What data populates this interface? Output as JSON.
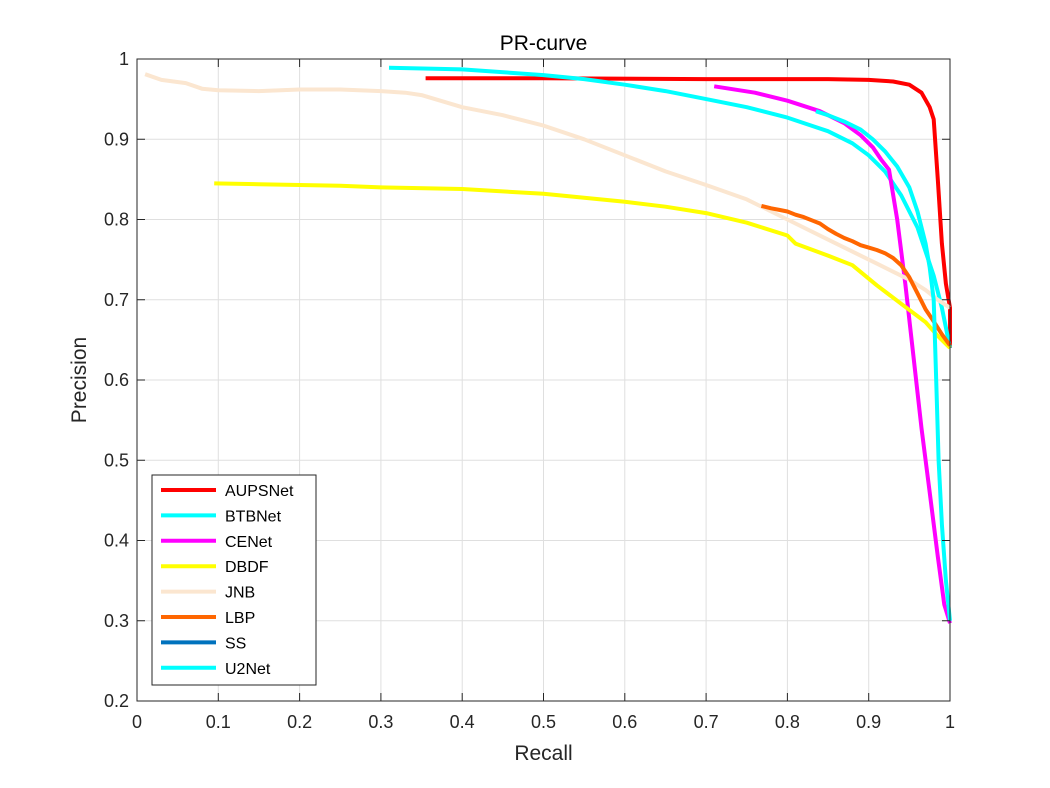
{
  "chart_data": {
    "type": "line",
    "title": "PR-curve",
    "xlabel": "Recall",
    "ylabel": "Precision",
    "xlim": [
      0,
      1
    ],
    "ylim": [
      0.2,
      1
    ],
    "xticks": [
      "0",
      "0.1",
      "0.2",
      "0.3",
      "0.4",
      "0.5",
      "0.6",
      "0.7",
      "0.8",
      "0.9",
      "1"
    ],
    "yticks": [
      "0.2",
      "0.3",
      "0.4",
      "0.5",
      "0.6",
      "0.7",
      "0.8",
      "0.9",
      "1"
    ],
    "grid": true,
    "legend_position": "bottom-left",
    "series": [
      {
        "name": "AUPSNet",
        "color": "#ff0000",
        "points": [
          [
            0.355,
            0.976
          ],
          [
            0.5,
            0.976
          ],
          [
            0.7,
            0.975
          ],
          [
            0.85,
            0.975
          ],
          [
            0.9,
            0.974
          ],
          [
            0.93,
            0.972
          ],
          [
            0.95,
            0.968
          ],
          [
            0.965,
            0.958
          ],
          [
            0.975,
            0.94
          ],
          [
            0.98,
            0.925
          ],
          [
            0.985,
            0.85
          ],
          [
            0.99,
            0.77
          ],
          [
            0.995,
            0.72
          ],
          [
            1.0,
            0.69
          ],
          [
            1.0,
            0.64
          ]
        ]
      },
      {
        "name": "BTBNet",
        "color": "#00ffff",
        "points": [
          [
            0.31,
            0.989
          ],
          [
            0.4,
            0.987
          ],
          [
            0.5,
            0.98
          ],
          [
            0.55,
            0.975
          ],
          [
            0.6,
            0.968
          ],
          [
            0.65,
            0.96
          ],
          [
            0.7,
            0.95
          ],
          [
            0.75,
            0.94
          ],
          [
            0.8,
            0.927
          ],
          [
            0.85,
            0.91
          ],
          [
            0.88,
            0.895
          ],
          [
            0.9,
            0.88
          ],
          [
            0.92,
            0.86
          ],
          [
            0.94,
            0.83
          ],
          [
            0.96,
            0.79
          ],
          [
            0.98,
            0.73
          ],
          [
            0.99,
            0.69
          ],
          [
            1.0,
            0.64
          ]
        ]
      },
      {
        "name": "CENet",
        "color": "#ff00ff",
        "points": [
          [
            0.71,
            0.966
          ],
          [
            0.76,
            0.958
          ],
          [
            0.8,
            0.948
          ],
          [
            0.84,
            0.935
          ],
          [
            0.87,
            0.92
          ],
          [
            0.89,
            0.905
          ],
          [
            0.905,
            0.89
          ],
          [
            0.915,
            0.875
          ],
          [
            0.925,
            0.862
          ],
          [
            0.935,
            0.8
          ],
          [
            0.945,
            0.72
          ],
          [
            0.955,
            0.63
          ],
          [
            0.965,
            0.54
          ],
          [
            0.975,
            0.46
          ],
          [
            0.985,
            0.38
          ],
          [
            0.993,
            0.32
          ],
          [
            1.0,
            0.297
          ]
        ]
      },
      {
        "name": "DBDF",
        "color": "#ffff00",
        "points": [
          [
            0.095,
            0.845
          ],
          [
            0.15,
            0.844
          ],
          [
            0.25,
            0.842
          ],
          [
            0.3,
            0.84
          ],
          [
            0.4,
            0.838
          ],
          [
            0.5,
            0.832
          ],
          [
            0.6,
            0.822
          ],
          [
            0.65,
            0.816
          ],
          [
            0.7,
            0.808
          ],
          [
            0.75,
            0.796
          ],
          [
            0.8,
            0.78
          ],
          [
            0.81,
            0.77
          ],
          [
            0.85,
            0.755
          ],
          [
            0.88,
            0.743
          ],
          [
            0.91,
            0.718
          ],
          [
            0.94,
            0.695
          ],
          [
            0.97,
            0.672
          ],
          [
            0.985,
            0.655
          ],
          [
            1.0,
            0.64
          ]
        ]
      },
      {
        "name": "JNB",
        "color": "#fbe6d0",
        "points": [
          [
            0.01,
            0.981
          ],
          [
            0.03,
            0.974
          ],
          [
            0.06,
            0.97
          ],
          [
            0.08,
            0.963
          ],
          [
            0.1,
            0.961
          ],
          [
            0.15,
            0.96
          ],
          [
            0.2,
            0.962
          ],
          [
            0.25,
            0.962
          ],
          [
            0.3,
            0.96
          ],
          [
            0.33,
            0.958
          ],
          [
            0.35,
            0.955
          ],
          [
            0.4,
            0.94
          ],
          [
            0.45,
            0.93
          ],
          [
            0.5,
            0.917
          ],
          [
            0.55,
            0.9
          ],
          [
            0.6,
            0.88
          ],
          [
            0.65,
            0.86
          ],
          [
            0.7,
            0.843
          ],
          [
            0.75,
            0.825
          ],
          [
            0.8,
            0.8
          ],
          [
            0.85,
            0.775
          ],
          [
            0.88,
            0.76
          ],
          [
            0.91,
            0.745
          ],
          [
            0.93,
            0.735
          ],
          [
            0.95,
            0.725
          ],
          [
            0.97,
            0.712
          ],
          [
            0.985,
            0.7
          ],
          [
            1.0,
            0.69
          ]
        ]
      },
      {
        "name": "LBP",
        "color": "#ff6600",
        "points": [
          [
            0.768,
            0.817
          ],
          [
            0.78,
            0.814
          ],
          [
            0.79,
            0.812
          ],
          [
            0.8,
            0.81
          ],
          [
            0.81,
            0.806
          ],
          [
            0.82,
            0.803
          ],
          [
            0.83,
            0.799
          ],
          [
            0.84,
            0.795
          ],
          [
            0.85,
            0.788
          ],
          [
            0.86,
            0.782
          ],
          [
            0.87,
            0.777
          ],
          [
            0.88,
            0.773
          ],
          [
            0.89,
            0.768
          ],
          [
            0.9,
            0.765
          ],
          [
            0.91,
            0.762
          ],
          [
            0.92,
            0.758
          ],
          [
            0.93,
            0.752
          ],
          [
            0.94,
            0.743
          ],
          [
            0.95,
            0.728
          ],
          [
            0.96,
            0.708
          ],
          [
            0.97,
            0.688
          ],
          [
            0.98,
            0.673
          ],
          [
            0.99,
            0.657
          ],
          [
            1.0,
            0.643
          ]
        ]
      },
      {
        "name": "SS",
        "color": "#0072bd",
        "points": []
      },
      {
        "name": "U2Net",
        "color": "#00ffff",
        "points": [
          [
            0.835,
            0.935
          ],
          [
            0.85,
            0.93
          ],
          [
            0.87,
            0.922
          ],
          [
            0.89,
            0.912
          ],
          [
            0.905,
            0.9
          ],
          [
            0.92,
            0.885
          ],
          [
            0.935,
            0.866
          ],
          [
            0.95,
            0.84
          ],
          [
            0.96,
            0.81
          ],
          [
            0.97,
            0.77
          ],
          [
            0.975,
            0.74
          ],
          [
            0.98,
            0.7
          ],
          [
            0.983,
            0.6
          ],
          [
            0.986,
            0.5
          ],
          [
            0.99,
            0.42
          ],
          [
            0.995,
            0.35
          ],
          [
            1.0,
            0.3
          ]
        ]
      }
    ]
  }
}
